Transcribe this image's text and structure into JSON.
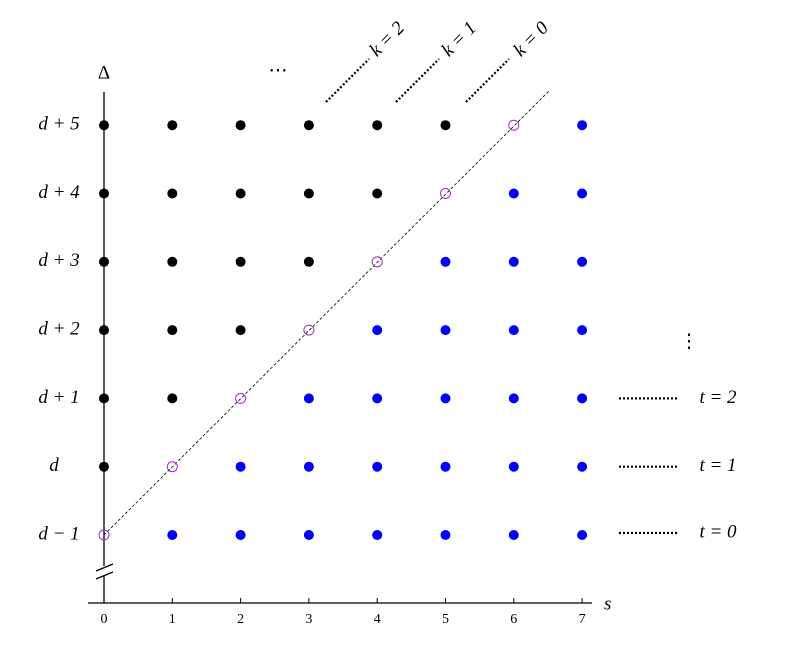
{
  "axis": {
    "vertical_label": "Δ",
    "horizontal_label": "s",
    "x_ticks": [
      "0",
      "1",
      "2",
      "3",
      "4",
      "5",
      "6",
      "7"
    ]
  },
  "rows": [
    "d − 1",
    "d",
    "d + 1",
    "d + 2",
    "d + 3",
    "d + 4",
    "d + 5"
  ],
  "diagonals": [
    "k = 0",
    "k = 1",
    "k = 2"
  ],
  "levels": [
    "t = 0",
    "t = 1",
    "t = 2"
  ],
  "ellipsis_top": "⋯",
  "ellipsis_right": "⋮"
}
